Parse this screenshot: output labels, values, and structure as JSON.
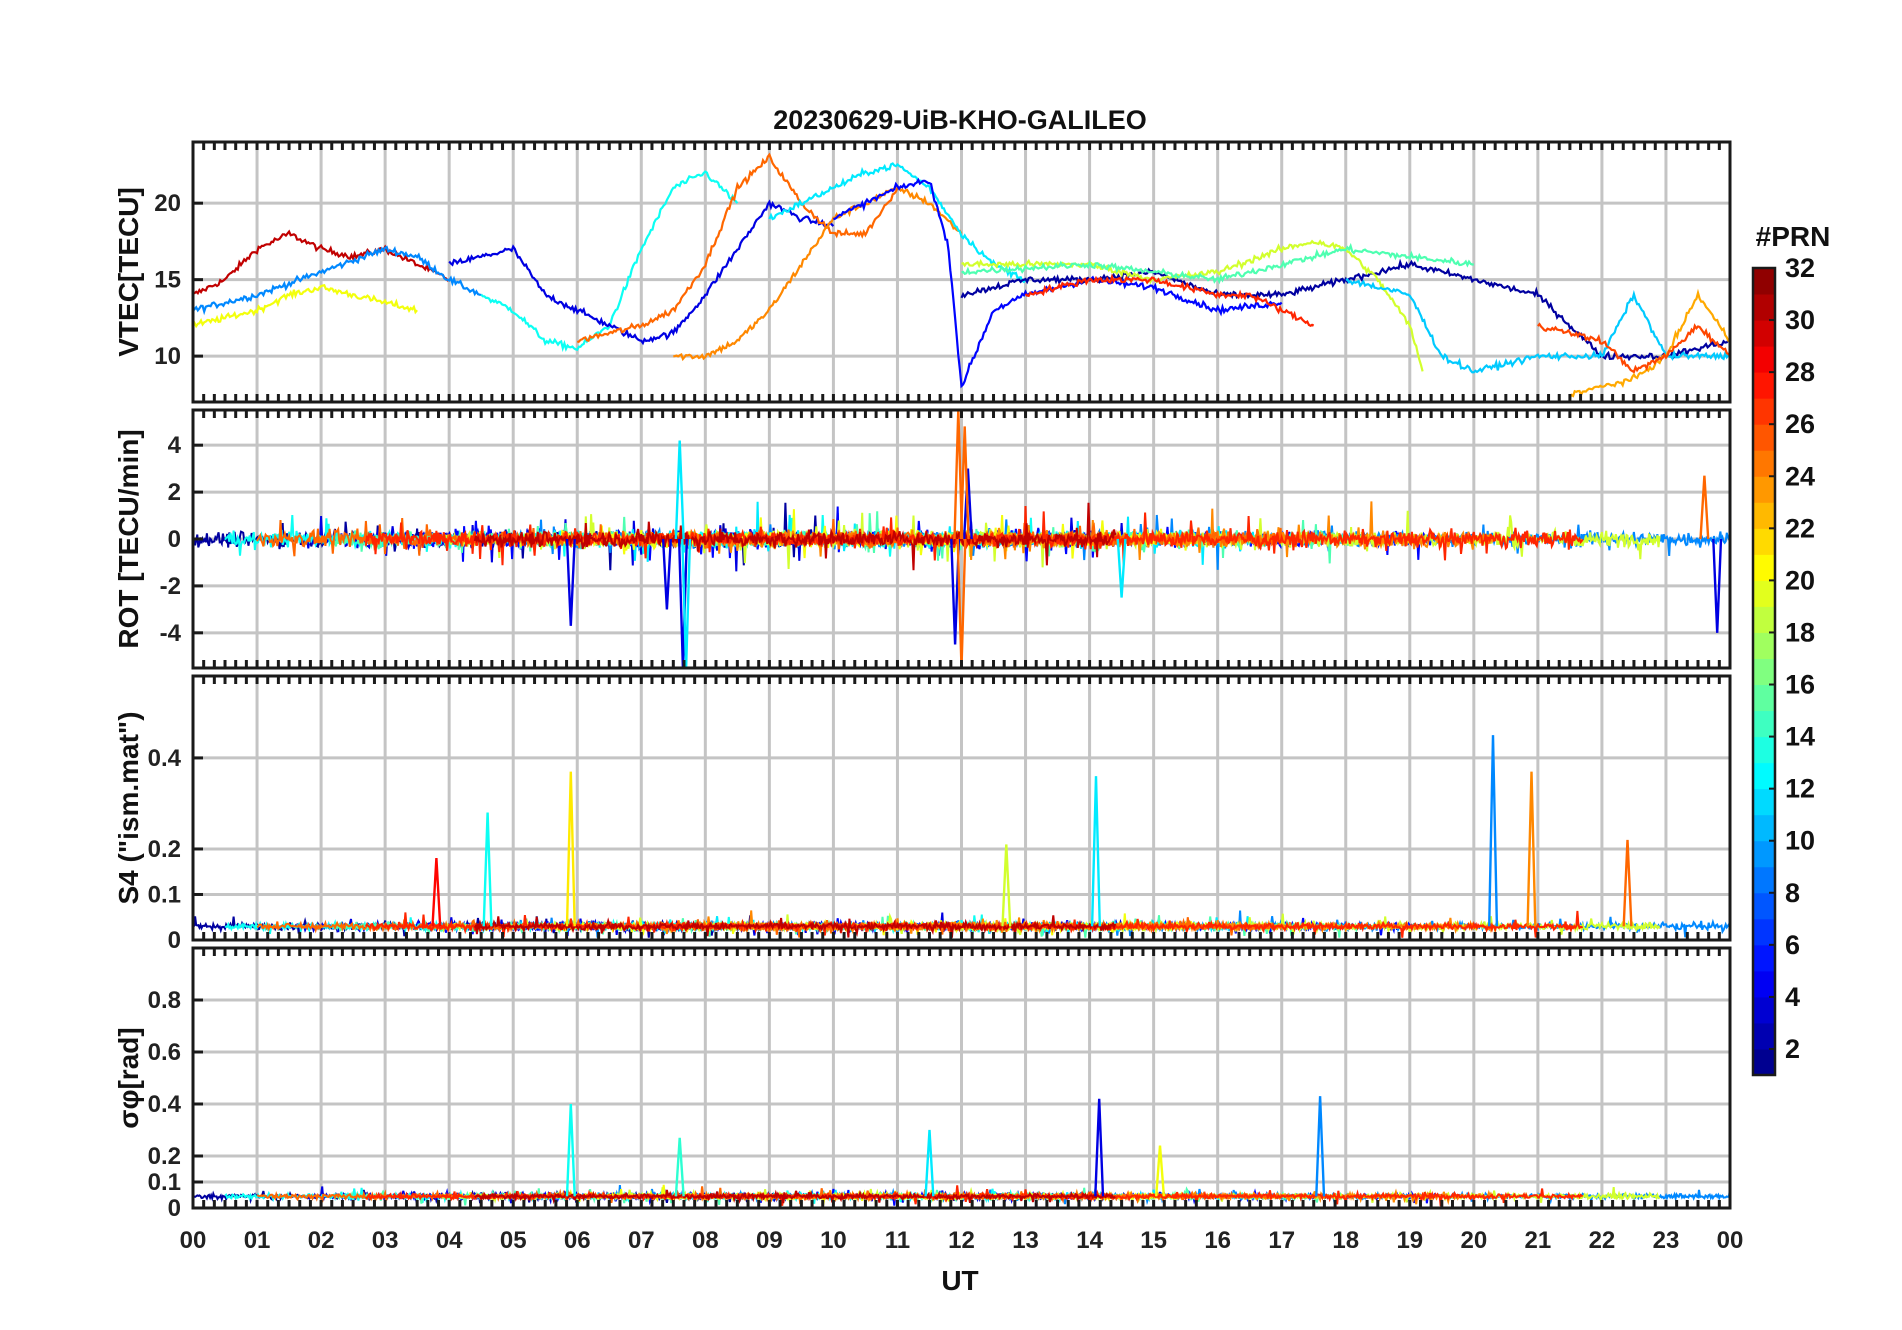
{
  "title": "20230629-UiB-KHO-GALILEO",
  "colorbar": {
    "title": "#PRN",
    "ticks": [
      "2",
      "4",
      "6",
      "8",
      "10",
      "12",
      "14",
      "16",
      "18",
      "20",
      "22",
      "24",
      "26",
      "28",
      "30",
      "32"
    ],
    "range": [
      1,
      32
    ],
    "colormap": "jet"
  },
  "x_axis": {
    "label": "UT",
    "ticks": [
      "00",
      "01",
      "02",
      "03",
      "04",
      "05",
      "06",
      "07",
      "08",
      "09",
      "10",
      "11",
      "12",
      "13",
      "14",
      "15",
      "16",
      "17",
      "18",
      "19",
      "20",
      "21",
      "22",
      "23",
      "00"
    ]
  },
  "chart_data": [
    {
      "type": "line",
      "panel": "vtec",
      "ylabel": "VTEC[TECU]",
      "ylim": [
        7,
        24
      ],
      "yticks": [
        10,
        15,
        20
      ],
      "ytick_labels": [
        "10",
        "15",
        "20"
      ],
      "xlim": [
        0,
        24
      ],
      "series": [
        {
          "name": "PRN 30",
          "prn": 30,
          "x": [
            0,
            0.5,
            1,
            1.5,
            2,
            2.5,
            3,
            3.5,
            4
          ],
          "y": [
            14,
            15,
            17,
            18,
            17,
            16.5,
            17,
            16,
            15
          ]
        },
        {
          "name": "PRN 9",
          "prn": 9,
          "x": [
            0,
            1,
            2,
            3,
            3.5,
            4,
            4.5
          ],
          "y": [
            13,
            14,
            15.5,
            17,
            16.5,
            15,
            14
          ]
        },
        {
          "name": "PRN 20",
          "prn": 20,
          "x": [
            0,
            1,
            1.5,
            2,
            2.5,
            3,
            3.5
          ],
          "y": [
            12,
            13,
            14,
            14.5,
            14,
            13.5,
            13
          ]
        },
        {
          "name": "PRN 13",
          "prn": 13,
          "x": [
            4.5,
            5,
            5.5,
            6,
            6.5,
            7,
            7.5,
            8,
            8.5
          ],
          "y": [
            14,
            13,
            11,
            10.5,
            12,
            17,
            21,
            22,
            20
          ]
        },
        {
          "name": "PRN 4",
          "prn": 4,
          "x": [
            4,
            5,
            5.5,
            6,
            6.5,
            7,
            7.5,
            8,
            8.5,
            9,
            9.5,
            10
          ],
          "y": [
            16,
            17,
            14,
            13,
            12,
            11,
            11.5,
            14,
            17,
            20,
            19,
            18.5
          ]
        },
        {
          "name": "PRN 25",
          "prn": 25,
          "x": [
            6,
            7,
            7.5,
            8,
            8.5,
            9,
            9.5,
            10,
            10.5,
            11
          ],
          "y": [
            11,
            12,
            13,
            16,
            21,
            23,
            20,
            18,
            18,
            21
          ]
        },
        {
          "name": "PRN 24",
          "prn": 24,
          "x": [
            7.5,
            8,
            8.5,
            9,
            9.5,
            10,
            10.5,
            11,
            11.5,
            12
          ],
          "y": [
            10,
            10,
            11,
            13,
            16,
            19,
            20,
            21,
            20,
            18
          ]
        },
        {
          "name": "PRN 12",
          "prn": 12,
          "x": [
            9,
            9.5,
            10,
            10.5,
            11,
            11.5,
            12,
            12.5,
            13
          ],
          "y": [
            19,
            20,
            21,
            22,
            22.5,
            21,
            18,
            16,
            15
          ]
        },
        {
          "name": "PRN 5",
          "prn": 5,
          "x": [
            10,
            10.5,
            11,
            11.5,
            11.8,
            12,
            12.5,
            13,
            14,
            15,
            16,
            17
          ],
          "y": [
            19,
            20,
            21,
            21.5,
            17,
            8,
            13,
            14,
            15,
            14.5,
            13,
            13.5
          ]
        },
        {
          "name": "PRN 2",
          "prn": 2,
          "x": [
            12,
            13,
            14,
            15,
            16,
            17,
            18,
            19,
            20,
            21,
            22,
            23,
            24
          ],
          "y": [
            14,
            15,
            15,
            15.5,
            14,
            14,
            15,
            16,
            15,
            14,
            10,
            10,
            11
          ]
        },
        {
          "name": "PRN 19",
          "prn": 19,
          "x": [
            12,
            13,
            14,
            15,
            16,
            17,
            17.5,
            18,
            18.5,
            19,
            19.2
          ],
          "y": [
            16,
            16,
            16,
            15,
            15.5,
            17,
            17.5,
            17,
            15,
            12,
            9
          ]
        },
        {
          "name": "PRN 15",
          "prn": 15,
          "x": [
            12,
            14,
            16,
            17,
            18,
            19,
            20
          ],
          "y": [
            15.5,
            16,
            15,
            16,
            17,
            16.5,
            16
          ]
        },
        {
          "name": "PRN 27",
          "prn": 27,
          "x": [
            13,
            14,
            15,
            16,
            16.5,
            17,
            17.5
          ],
          "y": [
            14,
            15,
            15,
            14,
            14,
            13,
            12
          ]
        },
        {
          "name": "PRN 11",
          "prn": 11,
          "x": [
            18,
            19,
            19.5,
            20,
            21,
            22,
            22.5,
            23,
            24
          ],
          "y": [
            15,
            14,
            10,
            9,
            10,
            10,
            14,
            10,
            10
          ]
        },
        {
          "name": "PRN 23",
          "prn": 23,
          "x": [
            21.5,
            22,
            22.5,
            23,
            23.5,
            24
          ],
          "y": [
            7.5,
            8,
            8.5,
            10,
            14,
            11
          ]
        },
        {
          "name": "PRN 26",
          "prn": 26,
          "x": [
            21,
            22,
            22.5,
            23,
            23.5,
            24
          ],
          "y": [
            12,
            11,
            9,
            10,
            12,
            10
          ]
        }
      ]
    },
    {
      "type": "line",
      "panel": "rot",
      "ylabel": "ROT [TECU/min]",
      "ylim": [
        -5.5,
        5.5
      ],
      "yticks": [
        -4,
        -2,
        0,
        2,
        4
      ],
      "ytick_labels": [
        "-4",
        "-2",
        "0",
        "2",
        "4"
      ],
      "xlim": [
        0,
        24
      ],
      "description": "noisy fluctuations around 0 for all PRNs",
      "spikes": [
        {
          "prn": 4,
          "x": [
            5.9,
            7.4,
            7.65,
            11.9,
            12.1,
            23.8
          ],
          "y": [
            -3.7,
            -3.0,
            -5.5,
            -4.5,
            3.0,
            -4.0
          ]
        },
        {
          "prn": 12,
          "x": [
            7.6,
            7.7,
            14.5
          ],
          "y": [
            4.2,
            -5.5,
            -2.5
          ]
        },
        {
          "prn": 25,
          "x": [
            11.95,
            12.0,
            12.05,
            23.6
          ],
          "y": [
            5.5,
            -5.5,
            4.8,
            2.7
          ]
        }
      ]
    },
    {
      "type": "line",
      "panel": "s4",
      "ylabel": "S4 (\"ism.mat\")",
      "ylim": [
        0,
        0.58
      ],
      "yticks": [
        0,
        0.1,
        0.2,
        0.4
      ],
      "ytick_labels": [
        "0",
        "0.1",
        "0.2",
        "0.4"
      ],
      "xlim": [
        0,
        24
      ],
      "description": "baseline ~0.02-0.05 with spikes",
      "spikes": [
        {
          "prn": 13,
          "x": 4.6,
          "y": 0.28
        },
        {
          "prn": 21,
          "x": 5.9,
          "y": 0.37
        },
        {
          "prn": 12,
          "x": 14.1,
          "y": 0.36
        },
        {
          "prn": 9,
          "x": 20.3,
          "y": 0.45
        },
        {
          "prn": 24,
          "x": 20.9,
          "y": 0.37
        },
        {
          "prn": 25,
          "x": 22.4,
          "y": 0.22
        },
        {
          "prn": 28,
          "x": 3.8,
          "y": 0.18
        },
        {
          "prn": 19,
          "x": 12.7,
          "y": 0.21
        }
      ]
    },
    {
      "type": "line",
      "panel": "sigma_phi",
      "ylabel": "σφ[rad]",
      "ylim": [
        0,
        1
      ],
      "yticks": [
        0,
        0.1,
        0.2,
        0.4,
        0.6,
        0.8
      ],
      "ytick_labels": [
        "0",
        "0.1",
        "0.2",
        "0.4",
        "0.6",
        "0.8"
      ],
      "xlim": [
        0,
        24
      ],
      "description": "baseline ~0.03-0.08 with spikes",
      "spikes": [
        {
          "prn": 13,
          "x": 5.9,
          "y": 0.4
        },
        {
          "prn": 4,
          "x": 14.15,
          "y": 0.42
        },
        {
          "prn": 9,
          "x": 17.6,
          "y": 0.43
        },
        {
          "prn": 12,
          "x": 11.5,
          "y": 0.3
        },
        {
          "prn": 20,
          "x": 15.1,
          "y": 0.24
        },
        {
          "prn": 14,
          "x": 7.6,
          "y": 0.27
        }
      ]
    }
  ]
}
